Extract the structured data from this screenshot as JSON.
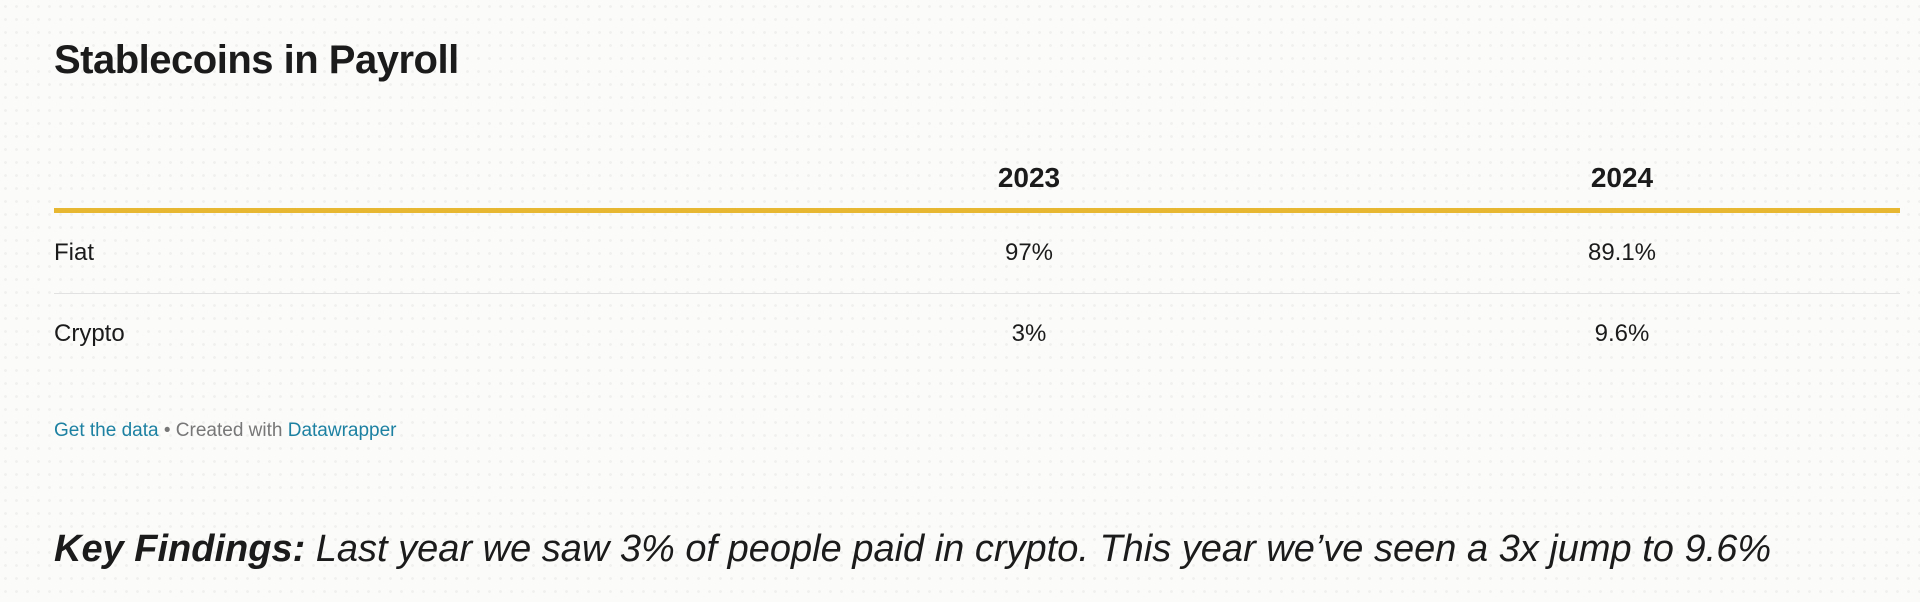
{
  "chart_data": {
    "type": "table",
    "title": "Stablecoins in Payroll",
    "columns": [
      "",
      "2023",
      "2024"
    ],
    "rows": [
      {
        "label": "Fiat",
        "values": [
          "97%",
          "89.1%"
        ]
      },
      {
        "label": "Crypto",
        "values": [
          "3%",
          "9.6%"
        ]
      }
    ]
  },
  "footer": {
    "get_data": "Get the data",
    "separator": " • Created with ",
    "tool": "Datawrapper"
  },
  "key_findings": {
    "label": "Key Findings:",
    "text": " Last year we saw 3% of people paid in crypto. This year we’ve seen a 3x jump to 9.6%"
  },
  "colors": {
    "header_rule": "#e8b731",
    "link": "#1d81a2",
    "text": "#1b1b1b"
  }
}
